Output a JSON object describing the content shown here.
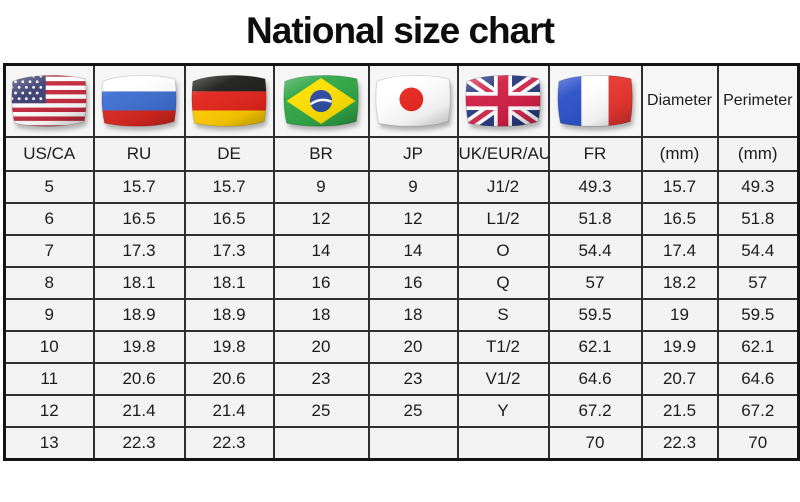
{
  "title": "National size chart",
  "table": {
    "columns": [
      {
        "label": "US/CA",
        "flag": "us",
        "flag_name": "united-states-flag"
      },
      {
        "label": "RU",
        "flag": "ru",
        "flag_name": "russia-flag"
      },
      {
        "label": "DE",
        "flag": "de",
        "flag_name": "germany-flag"
      },
      {
        "label": "BR",
        "flag": "br",
        "flag_name": "brazil-flag"
      },
      {
        "label": "JP",
        "flag": "jp",
        "flag_name": "japan-flag"
      },
      {
        "label": "UK/EUR/AU",
        "flag": "uk",
        "flag_name": "united-kingdom-flag"
      },
      {
        "label": "FR",
        "flag": "fr",
        "flag_name": "france-flag"
      },
      {
        "label": "(mm)",
        "header": "Diameter"
      },
      {
        "label": "(mm)",
        "header": "Perimeter"
      }
    ],
    "rows": [
      [
        "5",
        "15.7",
        "15.7",
        "9",
        "9",
        "J1/2",
        "49.3",
        "15.7",
        "49.3"
      ],
      [
        "6",
        "16.5",
        "16.5",
        "12",
        "12",
        "L1/2",
        "51.8",
        "16.5",
        "51.8"
      ],
      [
        "7",
        "17.3",
        "17.3",
        "14",
        "14",
        "O",
        "54.4",
        "17.4",
        "54.4"
      ],
      [
        "8",
        "18.1",
        "18.1",
        "16",
        "16",
        "Q",
        "57",
        "18.2",
        "57"
      ],
      [
        "9",
        "18.9",
        "18.9",
        "18",
        "18",
        "S",
        "59.5",
        "19",
        "59.5"
      ],
      [
        "10",
        "19.8",
        "19.8",
        "20",
        "20",
        "T1/2",
        "62.1",
        "19.9",
        "62.1"
      ],
      [
        "11",
        "20.6",
        "20.6",
        "23",
        "23",
        "V1/2",
        "64.6",
        "20.7",
        "64.6"
      ],
      [
        "12",
        "21.4",
        "21.4",
        "25",
        "25",
        "Y",
        "67.2",
        "21.5",
        "67.2"
      ],
      [
        "13",
        "22.3",
        "22.3",
        "",
        "",
        "",
        "70",
        "22.3",
        "70"
      ]
    ]
  },
  "chart_data": {
    "type": "table",
    "title": "National size chart",
    "columns": [
      "US/CA",
      "RU",
      "DE",
      "BR",
      "JP",
      "UK/EUR/AU",
      "FR",
      "Diameter (mm)",
      "Perimeter (mm)"
    ],
    "rows": [
      [
        "5",
        "15.7",
        "15.7",
        "9",
        "9",
        "J1/2",
        "49.3",
        "15.7",
        "49.3"
      ],
      [
        "6",
        "16.5",
        "16.5",
        "12",
        "12",
        "L1/2",
        "51.8",
        "16.5",
        "51.8"
      ],
      [
        "7",
        "17.3",
        "17.3",
        "14",
        "14",
        "O",
        "54.4",
        "17.4",
        "54.4"
      ],
      [
        "8",
        "18.1",
        "18.1",
        "16",
        "16",
        "Q",
        "57",
        "18.2",
        "57"
      ],
      [
        "9",
        "18.9",
        "18.9",
        "18",
        "18",
        "S",
        "59.5",
        "19",
        "59.5"
      ],
      [
        "10",
        "19.8",
        "19.8",
        "20",
        "20",
        "T1/2",
        "62.1",
        "19.9",
        "62.1"
      ],
      [
        "11",
        "20.6",
        "20.6",
        "23",
        "23",
        "V1/2",
        "64.6",
        "20.7",
        "64.6"
      ],
      [
        "12",
        "21.4",
        "21.4",
        "25",
        "25",
        "Y",
        "67.2",
        "21.5",
        "67.2"
      ],
      [
        "13",
        "22.3",
        "22.3",
        "",
        "",
        "",
        "70",
        "22.3",
        "70"
      ]
    ]
  },
  "colors": {
    "cell_background": "#f3f3f3",
    "grid_line": "#2e2e2e",
    "outer_border": "#141414",
    "text": "#1c1c1c",
    "title_text": "#0d0d0d"
  }
}
